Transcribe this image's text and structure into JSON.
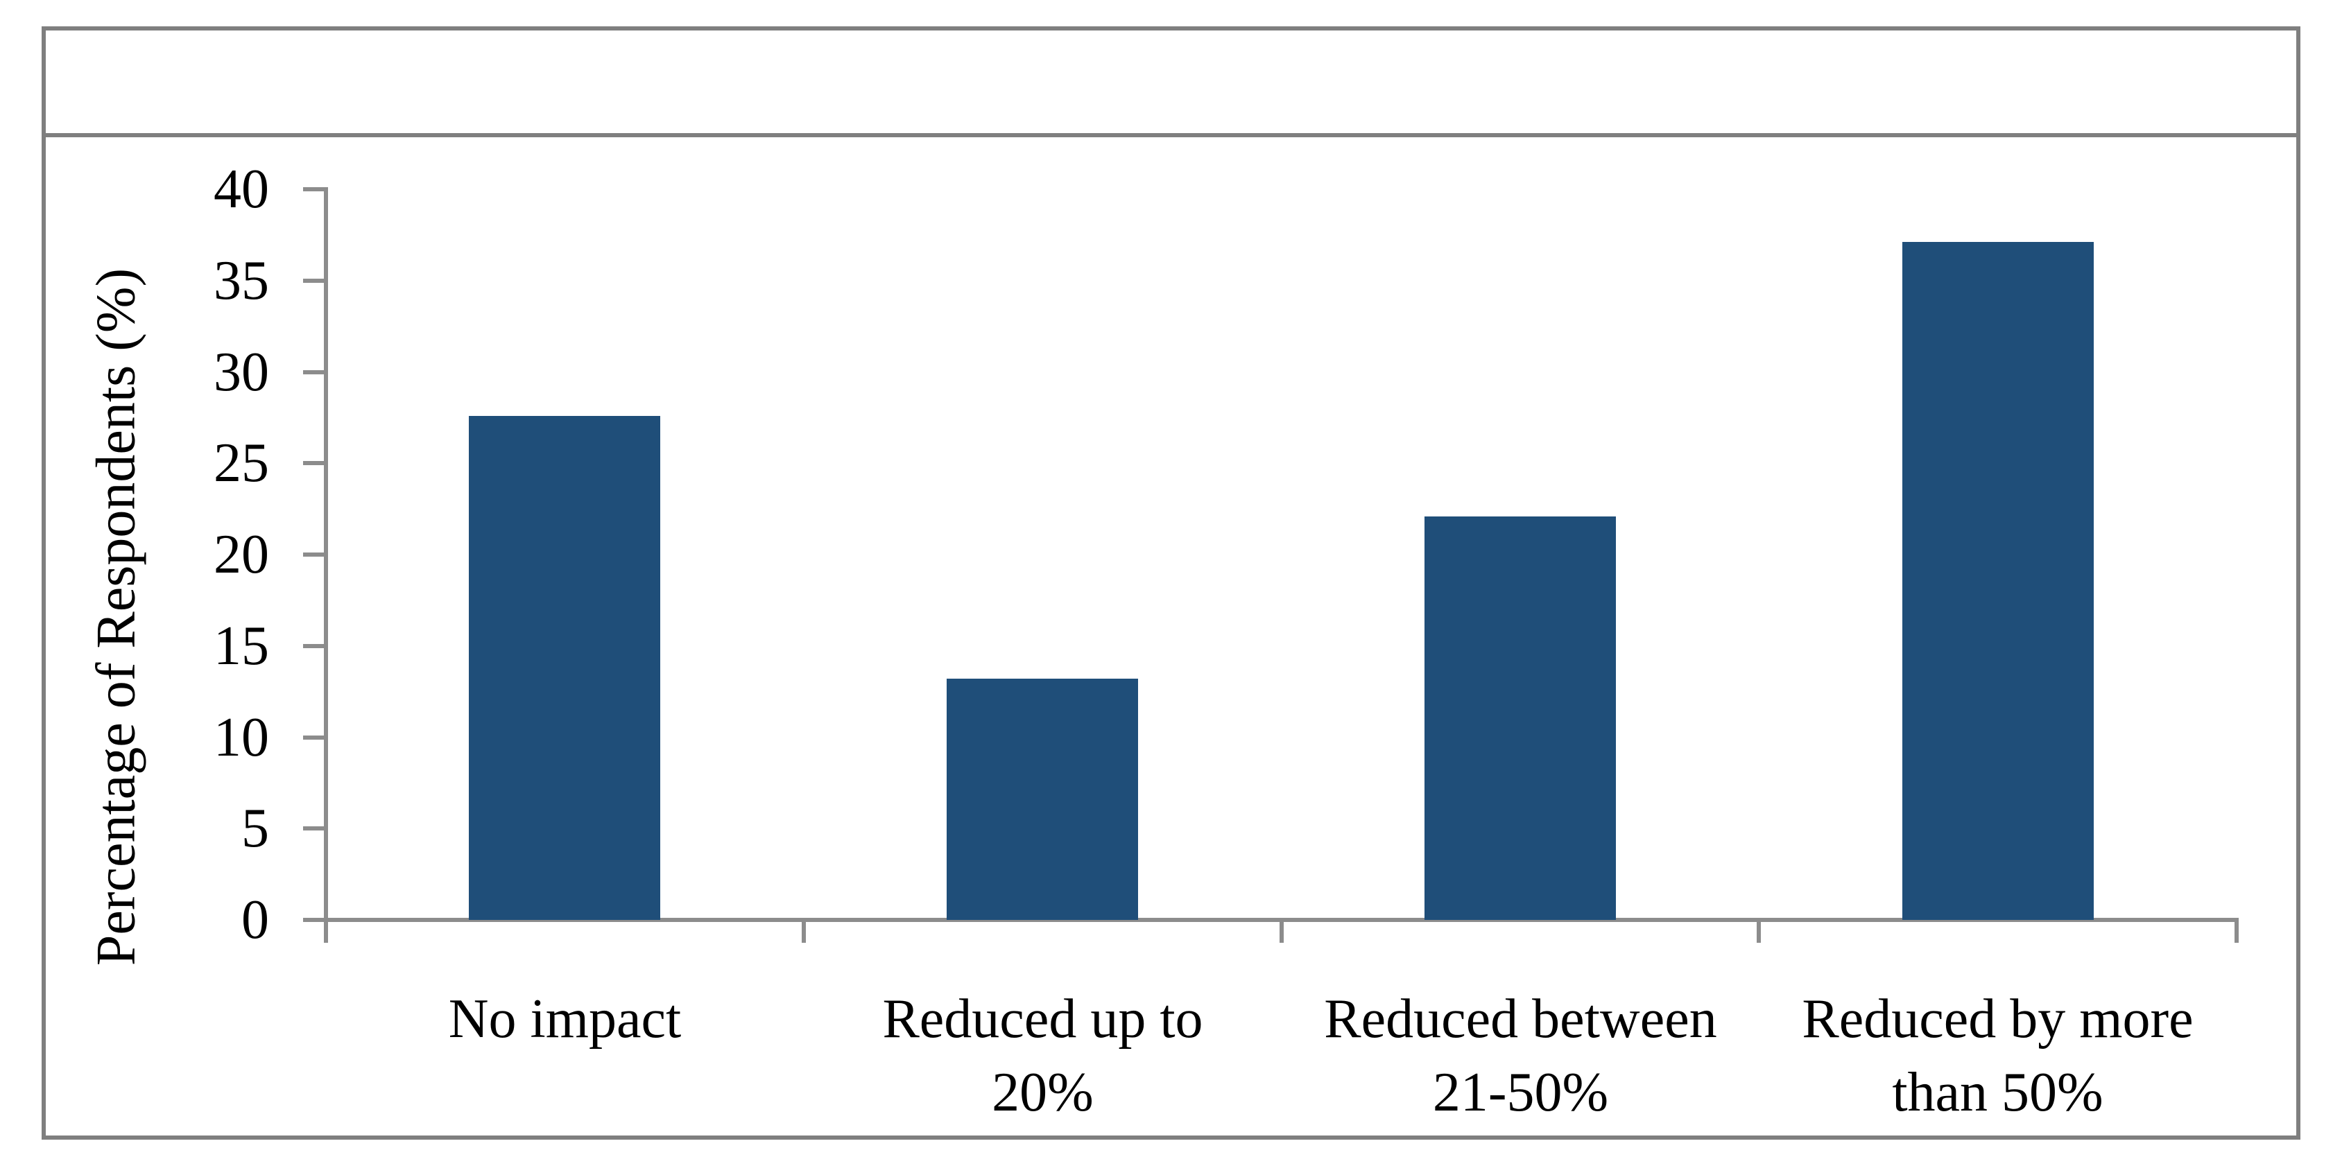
{
  "figure": {
    "header_note": ""
  },
  "chart_data": {
    "type": "bar",
    "title": "",
    "xlabel": "",
    "ylabel": "Percentage of Respondents (%)",
    "categories": [
      "No impact",
      "Reduced up to 20%",
      "Reduced between 21-50%",
      "Reduced by more than 50%"
    ],
    "category_lines": [
      [
        "No impact"
      ],
      [
        "Reduced up to",
        "20%"
      ],
      [
        "Reduced between",
        "21-50%"
      ],
      [
        "Reduced by more",
        "than 50%"
      ]
    ],
    "values": [
      27.6,
      13.2,
      22.1,
      37.1
    ],
    "ylim": [
      0,
      40
    ],
    "ytick_step": 5,
    "ytick_labels": [
      "0",
      "5",
      "10",
      "15",
      "20",
      "25",
      "30",
      "35",
      "40"
    ],
    "grid": false,
    "legend": null,
    "bar_color": "#1F4E79",
    "axis_color": "#8C8C8C",
    "frame_color": "#7F7F7F",
    "background_color": "#FFFFFF"
  }
}
